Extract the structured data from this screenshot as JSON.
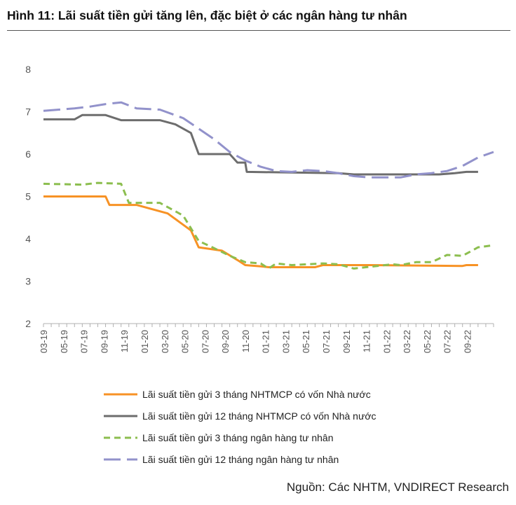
{
  "title": "Hình 11: Lãi suất tiền gửi tăng lên, đặc biệt ở các ngân hàng tư nhân",
  "source": "Nguồn: Các NHTM, VNDIRECT Research",
  "chart_data": {
    "type": "line",
    "title": "Hình 11: Lãi suất tiền gửi tăng lên, đặc biệt ở các ngân hàng tư nhân",
    "xlabel": "",
    "ylabel": "",
    "ylim": [
      2,
      8
    ],
    "yticks": [
      2,
      3,
      4,
      5,
      6,
      7,
      8
    ],
    "grid": false,
    "legend_position": "bottom",
    "x_tick_labels": [
      "03-19",
      "05-19",
      "07-19",
      "09-19",
      "11-19",
      "01-20",
      "03-20",
      "05-20",
      "07-20",
      "09-20",
      "11-20",
      "01-21",
      "03-21",
      "05-21",
      "07-21",
      "09-21",
      "11-21",
      "01-22",
      "03-22",
      "05-22",
      "07-22",
      "09-22"
    ],
    "series": [
      {
        "name": "Lãi suất tiền gửi 3 tháng NHTMCP  có vốn Nhà nước",
        "color": "#f79225",
        "style": "solid",
        "points": [
          [
            0,
            5.0
          ],
          [
            8,
            5.0
          ],
          [
            8.5,
            4.8
          ],
          [
            12,
            4.8
          ],
          [
            16,
            4.6
          ],
          [
            19,
            4.2
          ],
          [
            20,
            3.8
          ],
          [
            23,
            3.72
          ],
          [
            25,
            3.5
          ],
          [
            26,
            3.38
          ],
          [
            28,
            3.35
          ],
          [
            29,
            3.33
          ],
          [
            35,
            3.33
          ],
          [
            36,
            3.38
          ],
          [
            42,
            3.38
          ],
          [
            54,
            3.36
          ],
          [
            54.5,
            3.38
          ],
          [
            56,
            3.38
          ]
        ]
      },
      {
        "name": "Lãi suất tiền gửi 12 tháng NHTMCP  có vốn Nhà nước",
        "color": "#6d6d6d",
        "style": "solid",
        "points": [
          [
            0,
            6.82
          ],
          [
            4,
            6.82
          ],
          [
            5,
            6.92
          ],
          [
            8,
            6.92
          ],
          [
            10,
            6.8
          ],
          [
            15,
            6.8
          ],
          [
            17,
            6.7
          ],
          [
            19,
            6.5
          ],
          [
            20,
            6.0
          ],
          [
            24,
            6.0
          ],
          [
            25,
            5.8
          ],
          [
            26,
            5.8
          ],
          [
            26.2,
            5.58
          ],
          [
            38,
            5.55
          ],
          [
            40,
            5.52
          ],
          [
            45,
            5.52
          ],
          [
            51,
            5.52
          ],
          [
            53,
            5.55
          ],
          [
            54.5,
            5.58
          ],
          [
            56,
            5.58
          ]
        ]
      },
      {
        "name": "Lãi suất tiền gửi 3 tháng ngân hàng tư nhân",
        "color": "#8cbe4f",
        "style": "dash",
        "points": [
          [
            0,
            5.3
          ],
          [
            5,
            5.28
          ],
          [
            7,
            5.32
          ],
          [
            10,
            5.3
          ],
          [
            11,
            4.85
          ],
          [
            15,
            4.85
          ],
          [
            18,
            4.55
          ],
          [
            20,
            3.95
          ],
          [
            22,
            3.78
          ],
          [
            24,
            3.6
          ],
          [
            26,
            3.45
          ],
          [
            28,
            3.42
          ],
          [
            29,
            3.3
          ],
          [
            30,
            3.42
          ],
          [
            32,
            3.38
          ],
          [
            36,
            3.42
          ],
          [
            38,
            3.4
          ],
          [
            40,
            3.3
          ],
          [
            44,
            3.38
          ],
          [
            45,
            3.4
          ],
          [
            46,
            3.38
          ],
          [
            48,
            3.45
          ],
          [
            50,
            3.45
          ],
          [
            52,
            3.62
          ],
          [
            54,
            3.6
          ],
          [
            56,
            3.8
          ],
          [
            58,
            3.85
          ]
        ]
      },
      {
        "name": "Lãi suất tiền gửi 12 tháng ngân hàng tư nhân",
        "color": "#9292cb",
        "style": "longdash",
        "points": [
          [
            0,
            7.02
          ],
          [
            4,
            7.08
          ],
          [
            6,
            7.12
          ],
          [
            8,
            7.18
          ],
          [
            10,
            7.22
          ],
          [
            12,
            7.08
          ],
          [
            15,
            7.05
          ],
          [
            18,
            6.85
          ],
          [
            20,
            6.6
          ],
          [
            22,
            6.35
          ],
          [
            24,
            6.05
          ],
          [
            26,
            5.85
          ],
          [
            28,
            5.7
          ],
          [
            30,
            5.6
          ],
          [
            32,
            5.58
          ],
          [
            34,
            5.62
          ],
          [
            36,
            5.6
          ],
          [
            38,
            5.55
          ],
          [
            40,
            5.48
          ],
          [
            42,
            5.45
          ],
          [
            44,
            5.45
          ],
          [
            46,
            5.45
          ],
          [
            48,
            5.52
          ],
          [
            50,
            5.55
          ],
          [
            52,
            5.6
          ],
          [
            54,
            5.72
          ],
          [
            56,
            5.92
          ],
          [
            58,
            6.05
          ]
        ]
      }
    ]
  }
}
